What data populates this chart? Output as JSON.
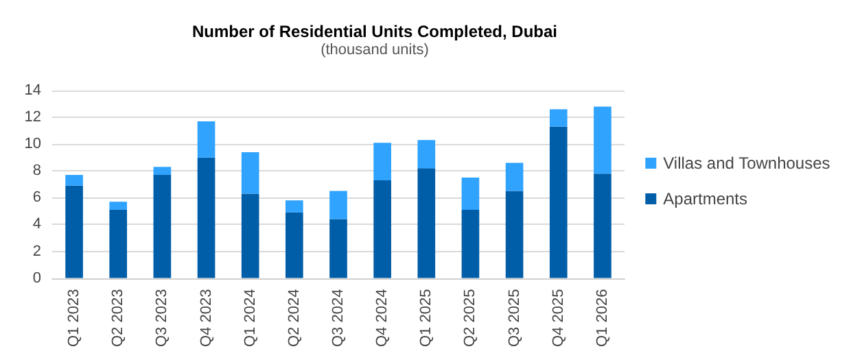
{
  "chart_data": {
    "type": "bar",
    "title": "Number of Residential Units Completed, Dubai",
    "subtitle": "(thousand units)",
    "categories": [
      "Q1 2023",
      "Q2 2023",
      "Q3 2023",
      "Q4 2023",
      "Q1 2024",
      "Q2 2024",
      "Q3 2024",
      "Q4 2024",
      "Q1 2025",
      "Q2 2025",
      "Q3 2025",
      "Q4 2025",
      "Q1 2026"
    ],
    "series": [
      {
        "name": "Apartments",
        "color": "#005ea8",
        "values": [
          6.9,
          5.1,
          7.7,
          9.0,
          6.3,
          4.9,
          4.4,
          7.3,
          8.2,
          5.1,
          6.5,
          11.3,
          7.8
        ]
      },
      {
        "name": "Villas and Townhouses",
        "color": "#30a3ff",
        "values": [
          0.8,
          0.6,
          0.6,
          2.7,
          3.1,
          0.9,
          2.1,
          2.8,
          2.1,
          2.4,
          2.1,
          1.3,
          5.0
        ]
      }
    ],
    "stacked": true,
    "ylim": [
      0,
      14
    ],
    "yticks": [
      0,
      2,
      4,
      6,
      8,
      10,
      12,
      14
    ],
    "grid": "y",
    "legend": "right"
  }
}
